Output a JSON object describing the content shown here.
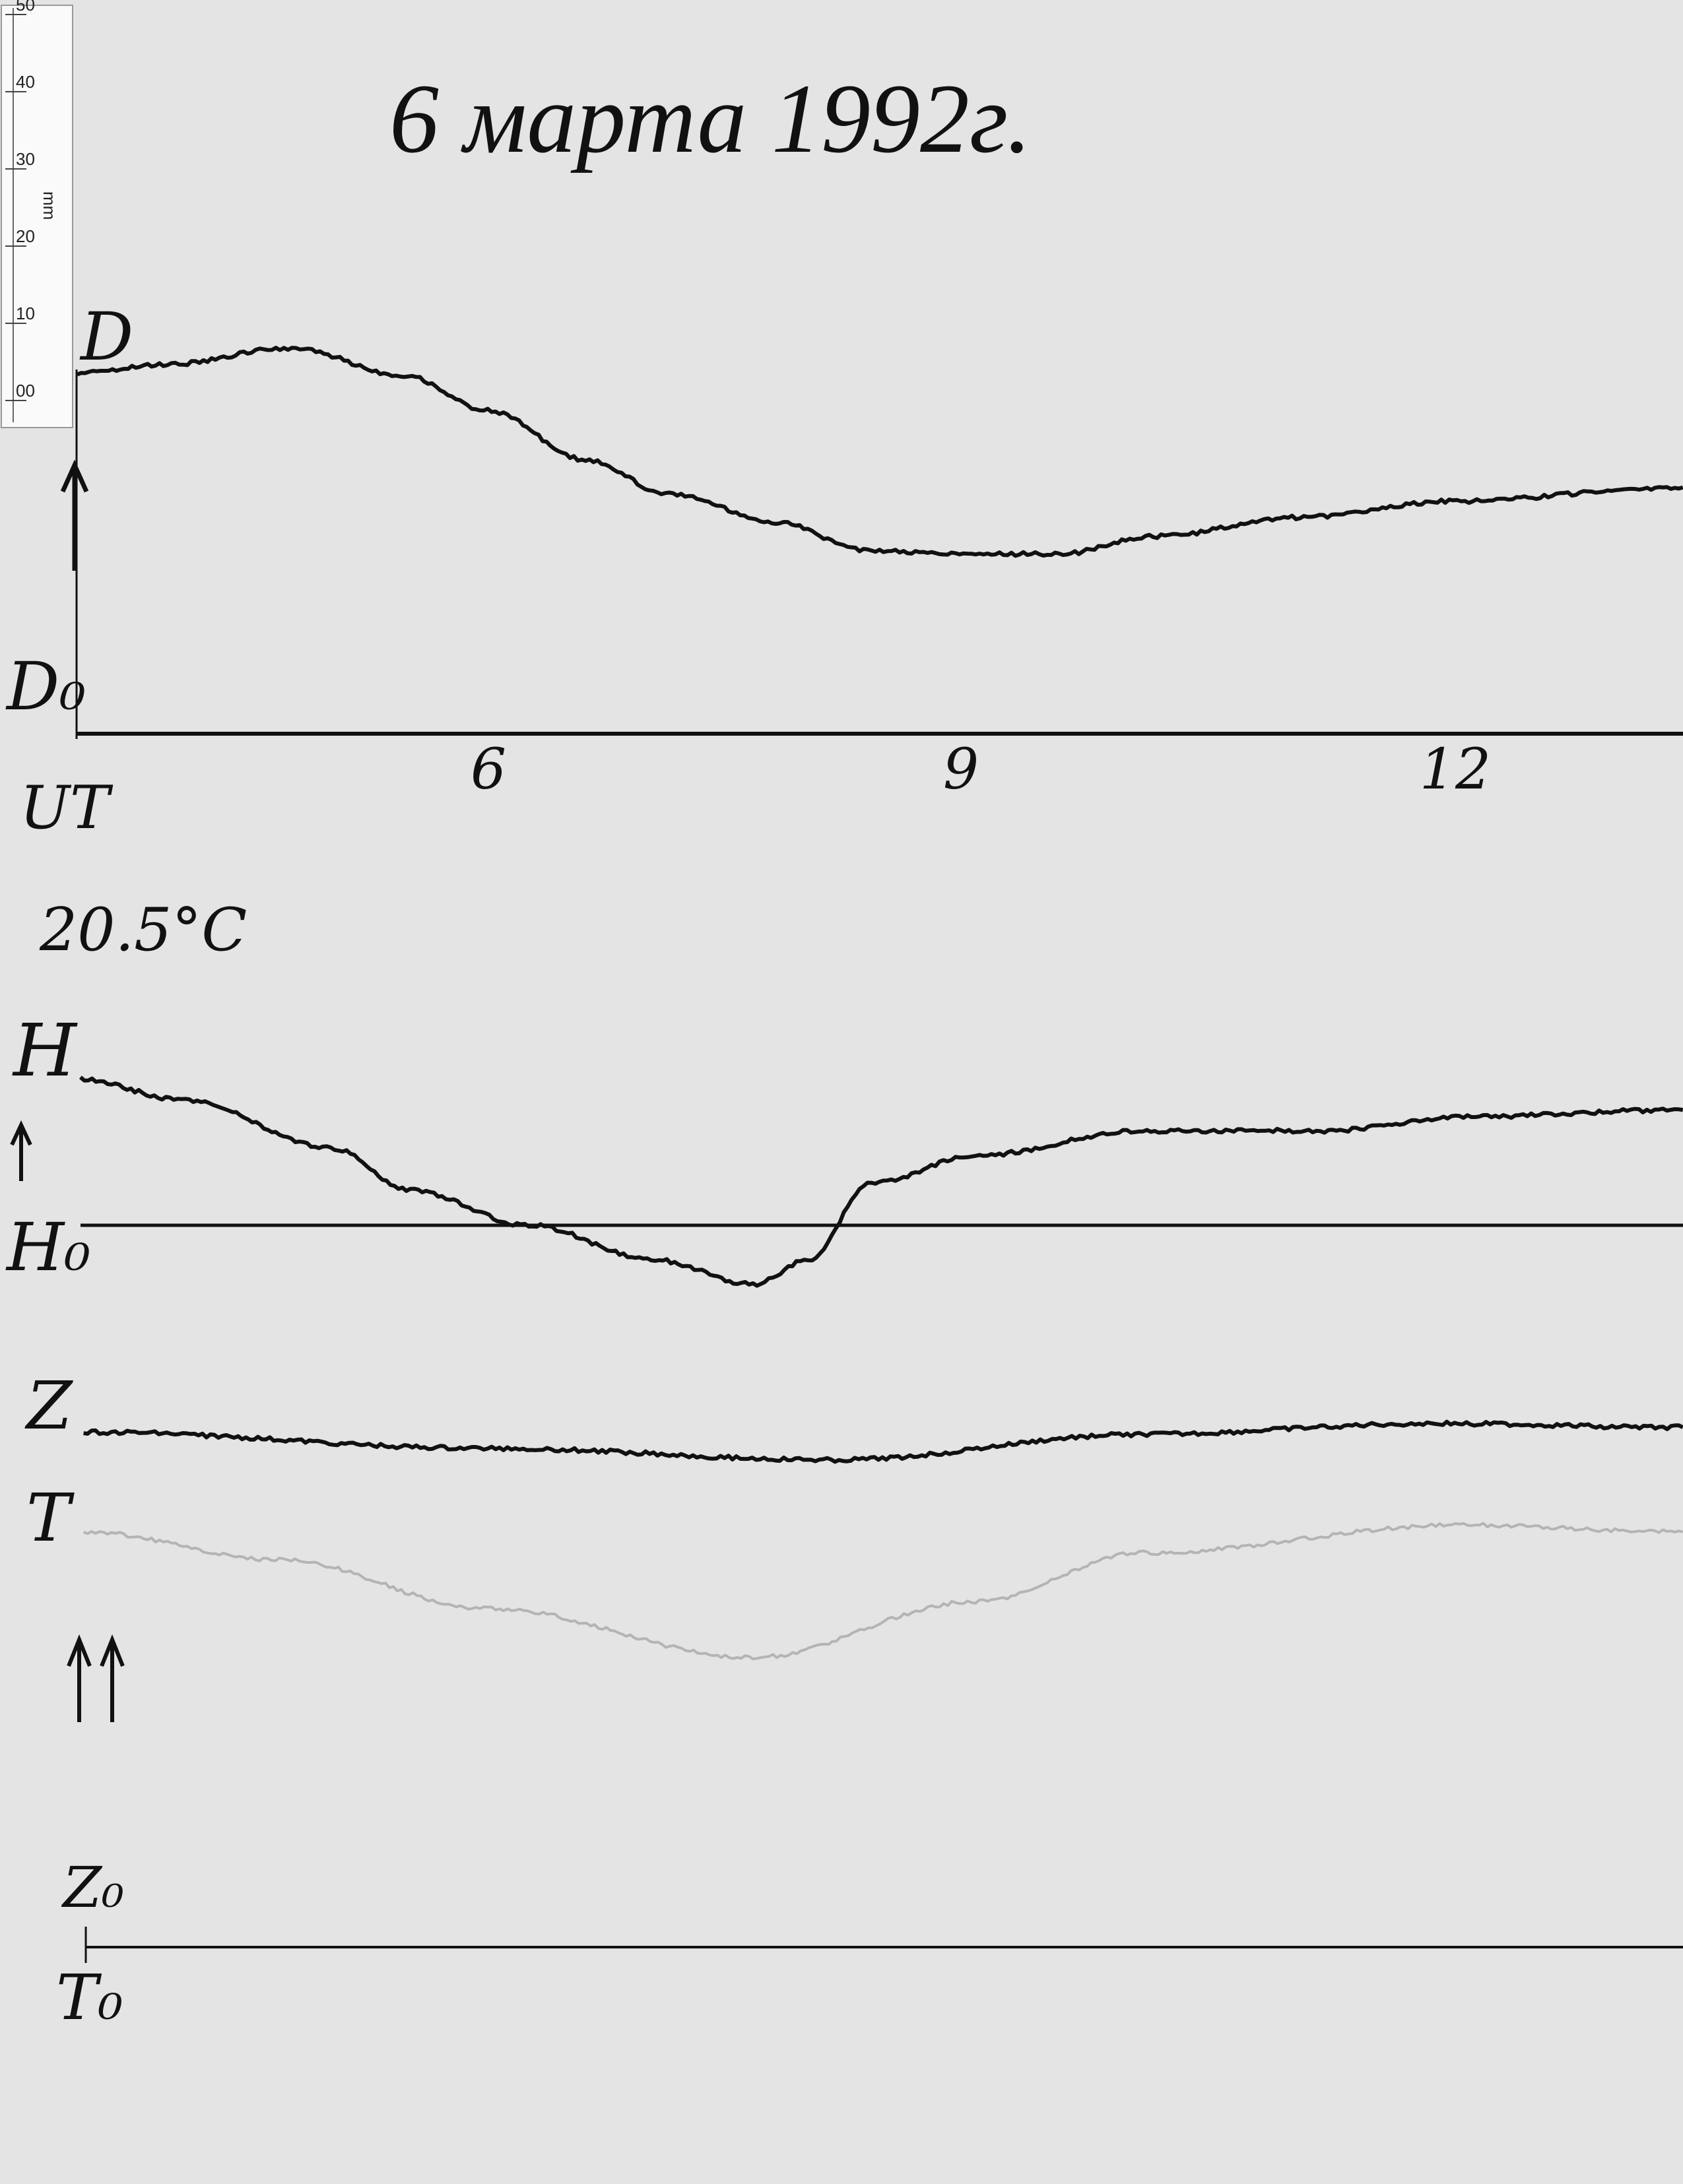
{
  "title": "6 марта 1992г.",
  "ruler": {
    "unit": "mm",
    "ticks": [
      "50",
      "40",
      "30",
      "20",
      "10",
      "00"
    ]
  },
  "labels": {
    "D": "D",
    "D0": "D₀",
    "time_zone": "UT",
    "temperature": "20.5°C",
    "H": "H",
    "H0": "H₀",
    "Z": "Z",
    "T": "T",
    "Z0": "Z₀",
    "T0": "T₀"
  },
  "colors": {
    "paper": "#e4e4e4",
    "trace": "#111111",
    "temperature_trace": "#b4b4b4"
  },
  "chart_data": {
    "type": "line",
    "title": "6 марта 1992г.",
    "x_unit": "hours UT",
    "x_tick_labels": [
      "6",
      "9",
      "12"
    ],
    "x_ticks": [
      6,
      9,
      12
    ],
    "xlim": [
      3.4,
      13.6
    ],
    "y_unit": "mm",
    "grid": false,
    "series": [
      {
        "name": "D",
        "baseline": "D₀",
        "x": [
          3.4,
          3.97,
          4.76,
          5.47,
          6.0,
          6.62,
          7.15,
          7.85,
          8.38,
          9.09,
          9.62,
          10.24,
          11.12,
          12.09,
          13.57
        ],
        "y": [
          46.6,
          47.7,
          49.8,
          46.2,
          41.7,
          35.4,
          30.9,
          27.3,
          23.7,
          23.2,
          23.2,
          25.5,
          27.9,
          30.0,
          31.8
        ]
      },
      {
        "name": "H",
        "baseline": "H₀",
        "x": [
          3.42,
          4.06,
          5.03,
          5.51,
          6.26,
          7.06,
          7.68,
          8.03,
          8.43,
          9.09,
          10.15,
          11.3,
          12.18,
          13.57
        ],
        "y": [
          18.9,
          16.2,
          9.9,
          4.5,
          0,
          -4.5,
          -7.6,
          -4.5,
          5.4,
          9.0,
          12.2,
          12.2,
          14.0,
          14.9
        ]
      },
      {
        "name": "Z",
        "baseline": "Z₀",
        "x": [
          3.44,
          6.0,
          8.2,
          10.15,
          12.0,
          13.57
        ],
        "y": [
          66.5,
          64.4,
          62.9,
          66.2,
          67.6,
          67.1
        ]
      },
      {
        "name": "T",
        "baseline": "T₀",
        "x": [
          3.44,
          4.68,
          6.0,
          7.68,
          9.09,
          10.15,
          12.18,
          13.57
        ],
        "y": [
          53.6,
          50.0,
          43.7,
          37.4,
          44.6,
          50.9,
          54.5,
          53.6
        ]
      }
    ]
  }
}
